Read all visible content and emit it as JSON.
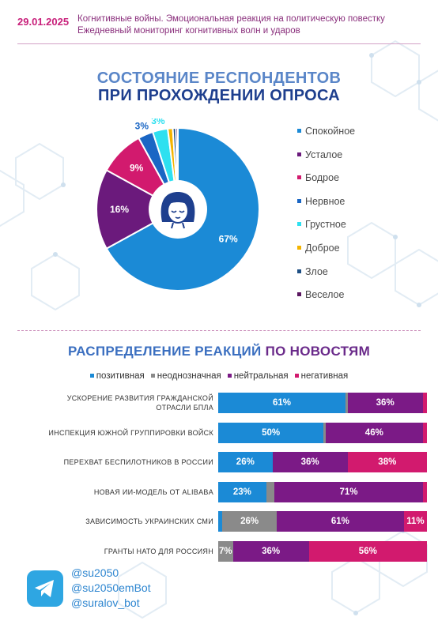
{
  "header": {
    "date": "29.01.2025",
    "line1": "Когнитивные войны. Эмоциональная реакция на политическую повестку",
    "line2": "Ежедневный мониторинг когнитивных волн и ударов"
  },
  "chart_data": [
    {
      "type": "pie",
      "title": "СОСТОЯНИЕ РЕСПОНДЕНТОВ ПРИ ПРОХОЖДЕНИИ ОПРОСА",
      "title_line1": "СОСТОЯНИЕ РЕСПОНДЕНТОВ",
      "title_line2": "ПРИ ПРОХОЖДЕНИИ ОПРОСА",
      "legend_position": "right",
      "slices": [
        {
          "label": "Спокойное",
          "value": 67,
          "value_label": "67%",
          "color": "#1b8ad6"
        },
        {
          "label": "Усталое",
          "value": 16,
          "value_label": "16%",
          "color": "#6b1a7c"
        },
        {
          "label": "Бодрое",
          "value": 9,
          "value_label": "9%",
          "color": "#d21a6e"
        },
        {
          "label": "Нервное",
          "value": 3,
          "value_label": "3%",
          "color": "#1a66c4"
        },
        {
          "label": "Грустное",
          "value": 3,
          "value_label": "3%",
          "color": "#2ee0f0"
        },
        {
          "label": "Доброе",
          "value": 1,
          "value_label": "",
          "color": "#f4b400"
        },
        {
          "label": "Злое",
          "value": 0.6,
          "value_label": "",
          "color": "#1e4f84"
        },
        {
          "label": "Веселое",
          "value": 0.4,
          "value_label": "",
          "color": "#5b1760"
        }
      ]
    },
    {
      "type": "bar",
      "orientation": "horizontal",
      "stacked": true,
      "title_part1": "РАСПРЕДЕЛЕНИЕ РЕАКЦИЙ",
      "title_part2": " ПО НОВОСТЯМ",
      "legend_position": "top",
      "series": [
        {
          "name": "позитивная",
          "color": "#1b8ad6"
        },
        {
          "name": "неоднозначная",
          "color": "#8a8a8a"
        },
        {
          "name": "нейтральная",
          "color": "#7b1a86"
        },
        {
          "name": "негативная",
          "color": "#d21a6e"
        }
      ],
      "rows": [
        {
          "label": "УСКОРЕНИЕ РАЗВИТИЯ ГРАЖДАНСКОЙ ОТРАСЛИ БПЛА",
          "label_line1": "УСКОРЕНИЕ РАЗВИТИЯ ГРАЖДАНСКОЙ",
          "label_line2": "ОТРАСЛИ БПЛА",
          "values": [
            61,
            1,
            36,
            2
          ],
          "labels": [
            "61%",
            "",
            "36%",
            ""
          ]
        },
        {
          "label": "ИНСПЕКЦИЯ ЮЖНОЙ ГРУППИРОВКИ ВОЙСК",
          "label_line1": "ИНСПЕКЦИЯ ЮЖНОЙ ГРУППИРОВКИ ВОЙСК",
          "label_line2": "",
          "values": [
            50,
            1,
            46,
            2
          ],
          "labels": [
            "50%",
            "",
            "46%",
            ""
          ]
        },
        {
          "label": "ПЕРЕХВАТ БЕСПИЛОТНИКОВ В РОССИИ",
          "label_line1": "ПЕРЕХВАТ БЕСПИЛОТНИКОВ В РОССИИ",
          "label_line2": "",
          "values": [
            26,
            0,
            36,
            38
          ],
          "labels": [
            "26%",
            "",
            "36%",
            "38%"
          ]
        },
        {
          "label": "НОВАЯ ИИ-МОДЕЛЬ ОТ ALIBABA",
          "label_line1": "НОВАЯ ИИ-МОДЕЛЬ ОТ ALIBABA",
          "label_line2": "",
          "values": [
            23,
            4,
            71,
            2
          ],
          "labels": [
            "23%",
            "",
            "71%",
            ""
          ]
        },
        {
          "label": "ЗАВИСИМОСТЬ УКРАИНСКИХ СМИ",
          "label_line1": "ЗАВИСИМОСТЬ УКРАИНСКИХ СМИ",
          "label_line2": "",
          "values": [
            2,
            26,
            61,
            11
          ],
          "labels": [
            "",
            "26%",
            "61%",
            "11%"
          ]
        },
        {
          "label": "ГРАНТЫ НАТО ДЛЯ РОССИЯН",
          "label_line1": "ГРАНТЫ НАТО ДЛЯ РОССИЯН",
          "label_line2": "",
          "values": [
            0,
            7,
            36,
            56
          ],
          "labels": [
            "",
            "7%",
            "36%",
            "56%"
          ]
        }
      ]
    }
  ],
  "footer": {
    "icon": "telegram-icon",
    "handles": [
      "@su2050",
      "@su2050emBot",
      "@suralov_bot"
    ]
  }
}
